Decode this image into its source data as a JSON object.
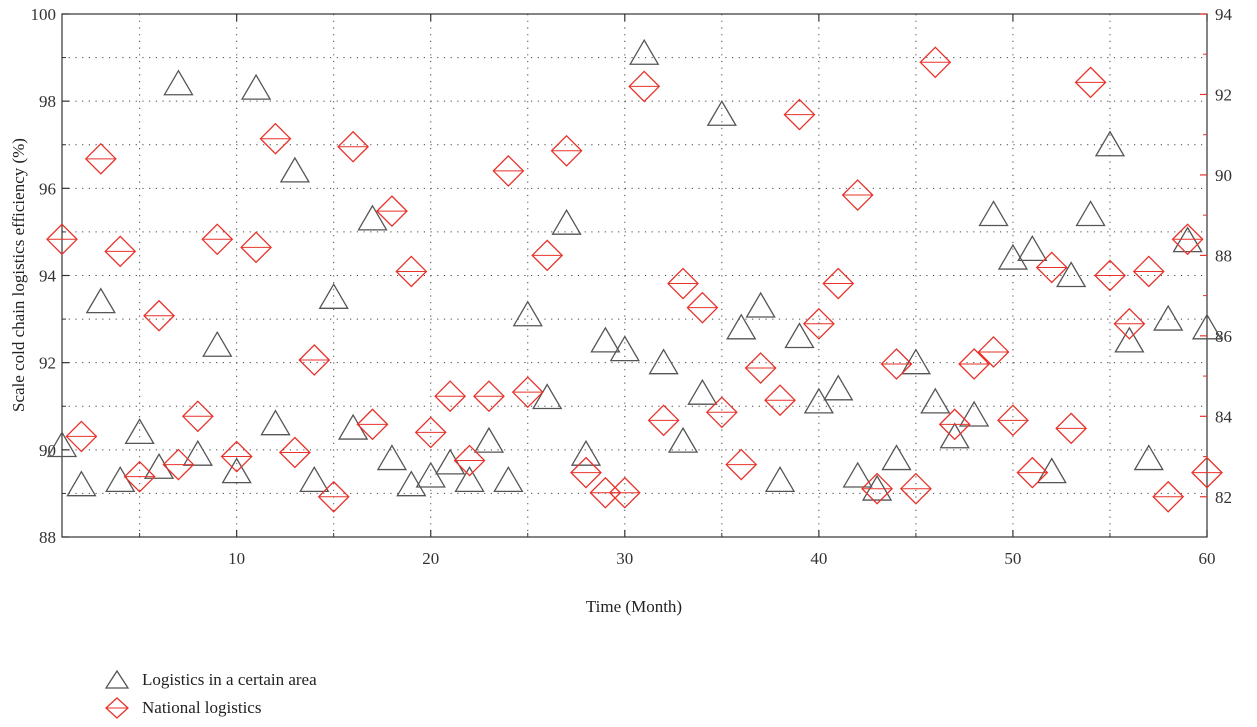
{
  "chart_data": {
    "type": "scatter",
    "title": "",
    "xlabel": "Time (Month)",
    "ylabel": "Scale cold chain logistics efficiency (%)",
    "xlim": [
      1,
      60
    ],
    "ylim": [
      88,
      100
    ],
    "y2lim": [
      81,
      94
    ],
    "grid": "dotted",
    "x_ticks": [
      "10",
      "20",
      "30",
      "40",
      "50",
      "60"
    ],
    "x_tick_values": [
      10,
      20,
      30,
      40,
      50,
      60
    ],
    "y_ticks": [
      "88",
      "90",
      "92",
      "94",
      "96",
      "98",
      "100"
    ],
    "y_tick_values": [
      88,
      90,
      92,
      94,
      96,
      98,
      100
    ],
    "y2_ticks": [
      "82",
      "84",
      "86",
      "88",
      "90",
      "92",
      "94"
    ],
    "y2_tick_values": [
      82,
      84,
      86,
      88,
      90,
      92,
      94
    ],
    "legend_position": "bottom-left",
    "series": [
      {
        "name": "Logistics in a certain area",
        "axis": "left",
        "marker": "triangle",
        "color": "#555555",
        "x": [
          1,
          2,
          3,
          4,
          5,
          6,
          7,
          8,
          9,
          10,
          11,
          12,
          13,
          14,
          15,
          16,
          17,
          18,
          19,
          20,
          21,
          22,
          23,
          24,
          25,
          26,
          27,
          28,
          29,
          30,
          31,
          32,
          33,
          34,
          35,
          36,
          37,
          38,
          39,
          40,
          41,
          42,
          43,
          44,
          45,
          46,
          47,
          48,
          49,
          50,
          51,
          52,
          53,
          54,
          55,
          56,
          57,
          58,
          59,
          60
        ],
        "y": [
          90.1,
          89.2,
          93.4,
          89.3,
          90.4,
          89.6,
          98.4,
          89.9,
          92.4,
          89.5,
          98.3,
          90.6,
          96.4,
          89.3,
          93.5,
          90.5,
          95.3,
          89.8,
          89.2,
          89.4,
          89.7,
          89.3,
          90.2,
          89.3,
          93.1,
          91.2,
          95.2,
          89.9,
          92.5,
          92.3,
          99.1,
          92.0,
          90.2,
          91.3,
          97.7,
          92.8,
          93.3,
          89.3,
          92.6,
          91.1,
          91.4,
          89.4,
          89.1,
          89.8,
          92.0,
          91.1,
          90.3,
          90.8,
          95.4,
          94.4,
          94.6,
          89.5,
          94.0,
          95.4,
          97.0,
          92.5,
          89.8,
          93.0,
          94.8,
          92.8
        ]
      },
      {
        "name": "National logistics",
        "axis": "right",
        "marker": "diamond",
        "color": "#e8322a",
        "x": [
          1,
          2,
          3,
          4,
          5,
          6,
          7,
          8,
          9,
          10,
          11,
          12,
          13,
          14,
          15,
          16,
          17,
          18,
          19,
          20,
          21,
          22,
          23,
          24,
          25,
          26,
          27,
          28,
          29,
          30,
          31,
          32,
          33,
          34,
          35,
          36,
          37,
          38,
          39,
          40,
          41,
          42,
          43,
          44,
          45,
          46,
          47,
          48,
          49,
          50,
          51,
          52,
          53,
          54,
          55,
          56,
          57,
          58,
          59,
          60
        ],
        "y": [
          88.4,
          83.5,
          90.4,
          88.1,
          82.5,
          86.5,
          82.8,
          84.0,
          88.4,
          83.0,
          88.2,
          90.9,
          83.1,
          85.4,
          82.0,
          90.7,
          83.8,
          89.1,
          87.6,
          83.6,
          84.5,
          82.9,
          84.5,
          90.1,
          84.6,
          88.0,
          90.6,
          82.6,
          82.1,
          82.1,
          92.2,
          83.9,
          87.3,
          86.7,
          84.1,
          82.8,
          85.2,
          84.4,
          91.5,
          86.3,
          87.3,
          89.5,
          82.2,
          85.3,
          82.2,
          92.8,
          83.8,
          85.3,
          85.6,
          83.9,
          82.6,
          87.7,
          83.7,
          92.3,
          87.5,
          86.3,
          87.6,
          82.0,
          88.4,
          82.6
        ]
      }
    ]
  }
}
